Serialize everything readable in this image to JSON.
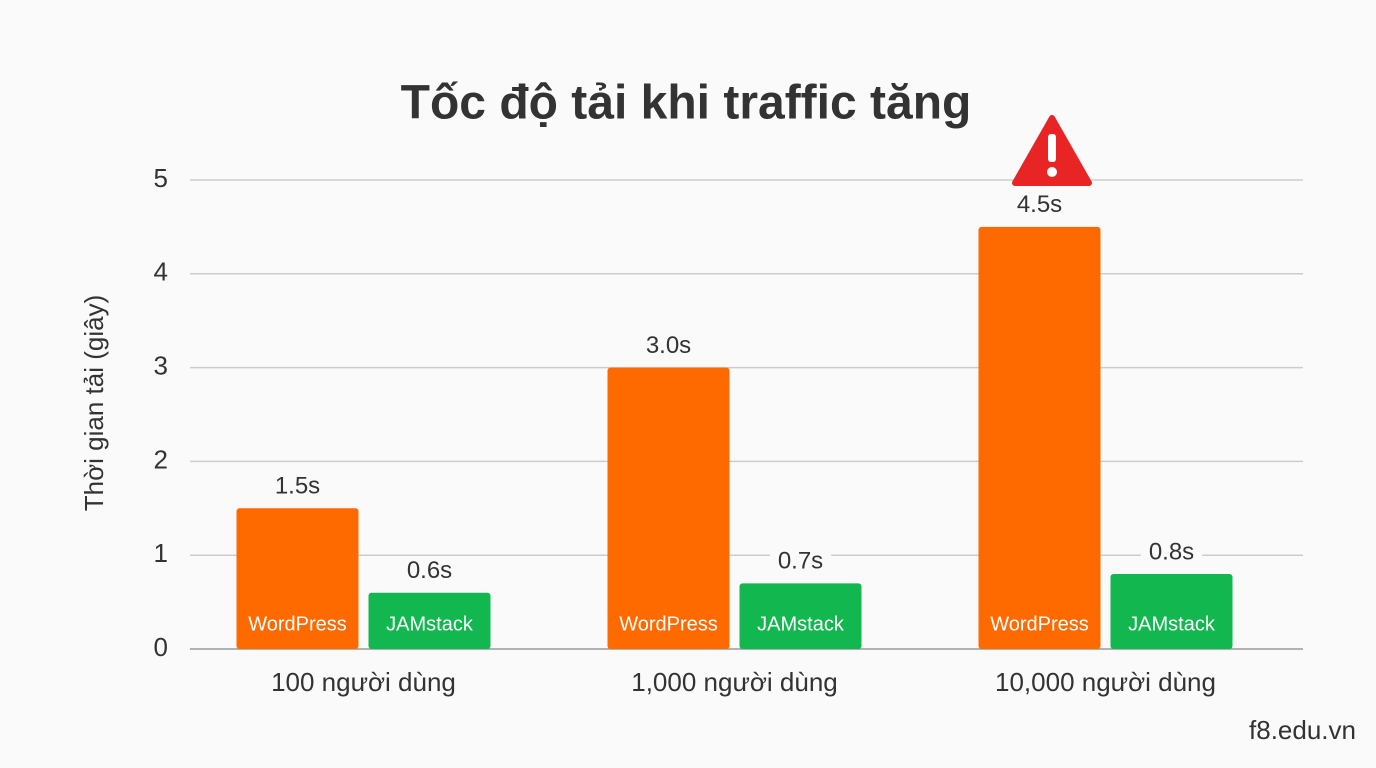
{
  "chart_data": {
    "type": "bar",
    "title": "Tốc độ tải khi traffic tăng",
    "y_label": "Thời gian tải (giây)",
    "categories": [
      "100 người dùng",
      "1,000 người dùng",
      "10,000 người dùng"
    ],
    "series": [
      {
        "name": "WordPress",
        "color": "#ff6a00",
        "values": [
          1.5,
          3.0,
          4.5
        ],
        "value_labels": [
          "1.5s",
          "3.0s",
          "4.5s"
        ]
      },
      {
        "name": "JAMstack",
        "color": "#12b84f",
        "values": [
          0.6,
          0.7,
          0.8
        ],
        "value_labels": [
          "0.6s",
          "0.7s",
          "0.8s"
        ]
      }
    ],
    "ylim": [
      0,
      5
    ],
    "yticks": [
      0,
      1,
      2,
      3,
      4,
      5
    ],
    "grid": true,
    "watermark": "f8.edu.vn"
  }
}
